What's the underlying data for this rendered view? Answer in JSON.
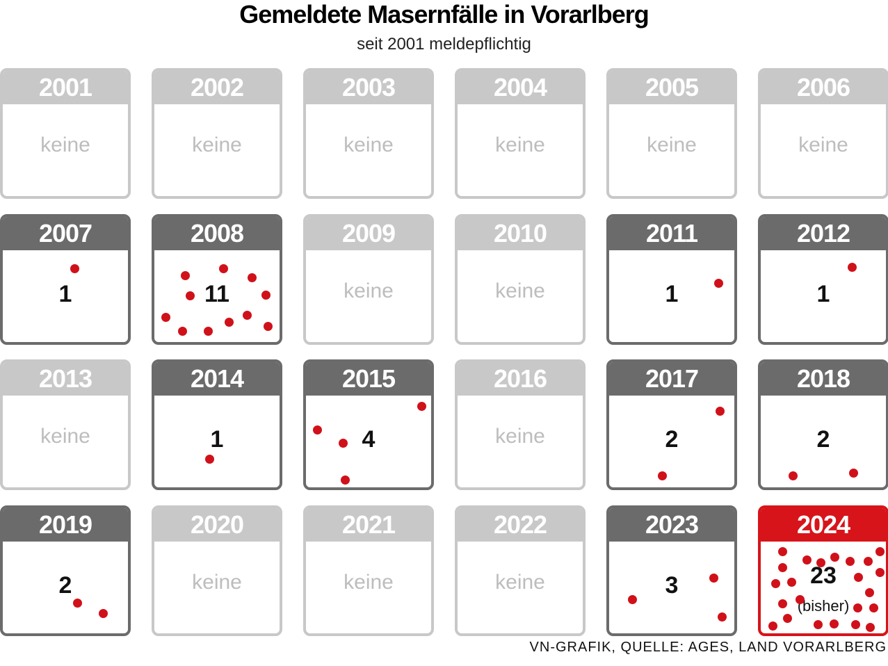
{
  "header": {
    "title": "Gemeldete Masernfälle in Vorarlberg",
    "subtitle": "seit 2001 meldepflichtig"
  },
  "cards": [
    {
      "year": "2001",
      "cases": "keine"
    },
    {
      "year": "2002",
      "cases": "keine"
    },
    {
      "year": "2003",
      "cases": "keine"
    },
    {
      "year": "2004",
      "cases": "keine"
    },
    {
      "year": "2005",
      "cases": "keine"
    },
    {
      "year": "2006",
      "cases": "keine"
    },
    {
      "year": "2007",
      "cases": 1
    },
    {
      "year": "2008",
      "cases": 11
    },
    {
      "year": "2009",
      "cases": "keine"
    },
    {
      "year": "2010",
      "cases": "keine"
    },
    {
      "year": "2011",
      "cases": 1
    },
    {
      "year": "2012",
      "cases": 1
    },
    {
      "year": "2013",
      "cases": "keine"
    },
    {
      "year": "2014",
      "cases": 1
    },
    {
      "year": "2015",
      "cases": 4
    },
    {
      "year": "2016",
      "cases": "keine"
    },
    {
      "year": "2017",
      "cases": 2
    },
    {
      "year": "2018",
      "cases": 2
    },
    {
      "year": "2019",
      "cases": 2
    },
    {
      "year": "2020",
      "cases": "keine"
    },
    {
      "year": "2021",
      "cases": "keine"
    },
    {
      "year": "2022",
      "cases": "keine"
    },
    {
      "year": "2023",
      "cases": 3
    },
    {
      "year": "2024",
      "cases": 23,
      "note": "(bisher)",
      "highlight": true
    }
  ],
  "source": "VN-GRAFIK, QUELLE: AGES, LAND VORARLBERG"
}
